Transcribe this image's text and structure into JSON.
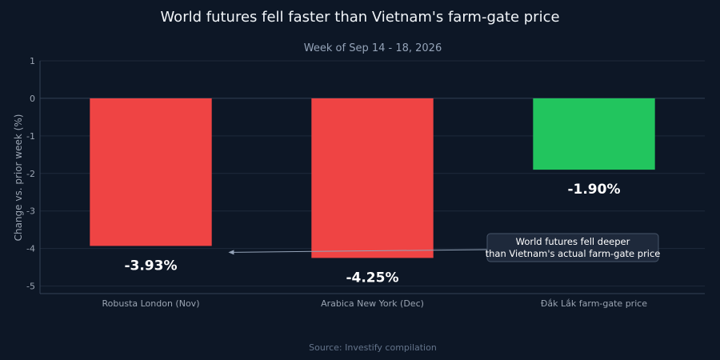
{
  "colors": {
    "background": "#0d1726",
    "negative_bar": "#ef4444",
    "positive_bar": "#22c55e",
    "title_text": "#f1f5f9",
    "subtitle_text": "#94a3b8",
    "axis_text": "#9aa4b2",
    "gridline": "#1e2a3b",
    "zeroline": "#334155",
    "annotation_bg": "#1e293b",
    "annotation_border": "#475569",
    "source_text": "#64748b"
  },
  "chart_data": {
    "type": "bar",
    "title": "World futures fell faster than Vietnam's farm-gate price",
    "subtitle": "Week of Sep 14 - 18, 2026",
    "xlabel": "",
    "ylabel": "Change vs. prior week (%)",
    "ylim": [
      -5.2,
      1
    ],
    "yticks": [
      1,
      0,
      -1,
      -2,
      -3,
      -4,
      -5
    ],
    "grid": true,
    "categories": [
      "Robusta London (Nov)",
      "Arabica New York (Dec)",
      "Đắk Lắk farm-gate price"
    ],
    "values": [
      -3.93,
      -4.25,
      -1.9
    ],
    "data_labels": [
      "-3.93%",
      "-4.25%",
      "-1.90%"
    ],
    "bar_colors": [
      "#ef4444",
      "#ef4444",
      "#22c55e"
    ],
    "annotation": {
      "lines": [
        "World futures fell deeper",
        "than Vietnam's actual farm-gate price"
      ],
      "arrow_to": {
        "category_position": 0.85,
        "value": -4.1
      }
    },
    "source": "Source: Investify compilation"
  }
}
